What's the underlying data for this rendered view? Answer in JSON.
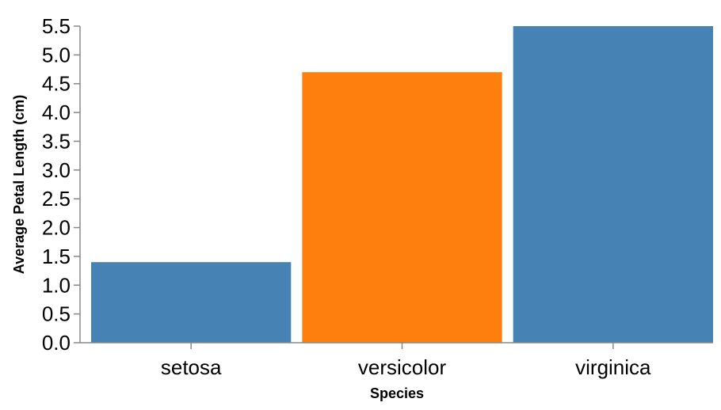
{
  "chart_data": {
    "type": "bar",
    "title": "",
    "xlabel": "Species",
    "ylabel": "Average Petal Length (cm)",
    "categories": [
      "setosa",
      "versicolor",
      "virginica"
    ],
    "values": [
      1.4,
      4.7,
      5.5
    ],
    "bar_colors": [
      "#4682b4",
      "#ff7f0e",
      "#4682b4"
    ],
    "ylim": [
      0,
      5.5
    ],
    "yticks": [
      "0.0",
      "0.5",
      "1.0",
      "1.5",
      "2.0",
      "2.5",
      "3.0",
      "3.5",
      "4.0",
      "4.5",
      "5.0",
      "5.5"
    ],
    "grid": false,
    "legend": "none"
  }
}
